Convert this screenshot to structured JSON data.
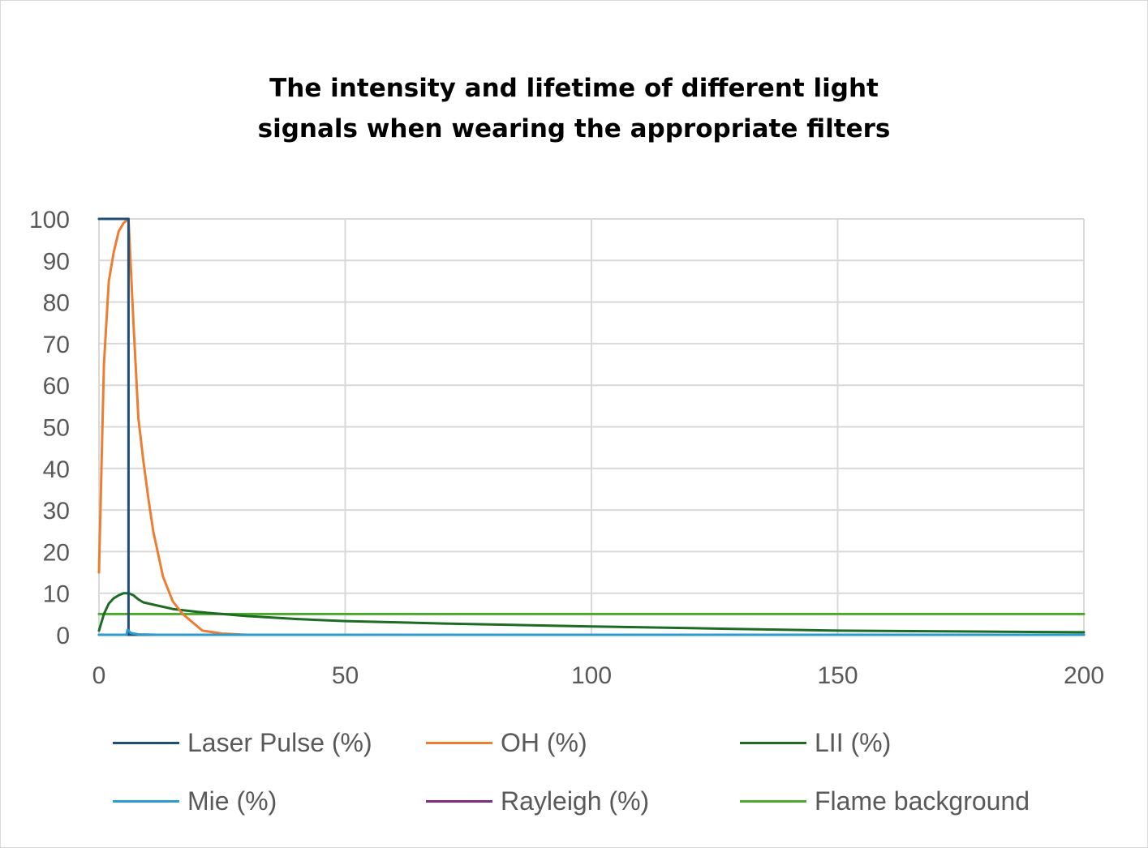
{
  "chart_data": {
    "type": "line",
    "title_lines": [
      "The intensity and lifetime of different light",
      "signals when wearing the appropriate filters"
    ],
    "xlim": [
      0,
      200
    ],
    "ylim": [
      0,
      100
    ],
    "x_ticks": [
      0,
      50,
      100,
      150,
      200
    ],
    "y_ticks": [
      0,
      10,
      20,
      30,
      40,
      50,
      60,
      70,
      80,
      90,
      100
    ],
    "grid": true,
    "legend_position": "bottom",
    "series": [
      {
        "name": "Laser Pulse (%)",
        "color": "#1f4e79",
        "points": [
          [
            0,
            100
          ],
          [
            6,
            100
          ],
          [
            6,
            0
          ],
          [
            200,
            0
          ]
        ]
      },
      {
        "name": "OH (%)",
        "color": "#ed7d31",
        "points": [
          [
            0,
            15
          ],
          [
            1,
            65
          ],
          [
            2,
            85
          ],
          [
            3,
            92
          ],
          [
            4,
            97
          ],
          [
            5,
            99
          ],
          [
            6,
            100
          ],
          [
            7,
            75
          ],
          [
            8,
            52
          ],
          [
            9,
            42
          ],
          [
            10,
            33
          ],
          [
            11,
            25
          ],
          [
            13,
            14
          ],
          [
            15,
            8
          ],
          [
            17,
            5
          ],
          [
            19,
            3
          ],
          [
            21,
            1
          ],
          [
            25,
            0.3
          ],
          [
            30,
            0
          ],
          [
            200,
            0
          ]
        ]
      },
      {
        "name": "LII (%)",
        "color": "#1e6b23",
        "points": [
          [
            0,
            1
          ],
          [
            1,
            5
          ],
          [
            2,
            7.5
          ],
          [
            3,
            8.8
          ],
          [
            4,
            9.5
          ],
          [
            5,
            10
          ],
          [
            6,
            10
          ],
          [
            7,
            9.5
          ],
          [
            8,
            8.5
          ],
          [
            9,
            7.8
          ],
          [
            12,
            7
          ],
          [
            15,
            6.2
          ],
          [
            20,
            5.5
          ],
          [
            25,
            5
          ],
          [
            30,
            4.5
          ],
          [
            40,
            3.8
          ],
          [
            50,
            3.3
          ],
          [
            70,
            2.7
          ],
          [
            100,
            2
          ],
          [
            120,
            1.6
          ],
          [
            150,
            1
          ],
          [
            175,
            0.8
          ],
          [
            200,
            0.6
          ]
        ]
      },
      {
        "name": "Mie (%)",
        "color": "#2e9bd0",
        "points": [
          [
            0,
            0
          ],
          [
            5.6,
            0
          ],
          [
            5.8,
            1.2
          ],
          [
            6.5,
            0.4
          ],
          [
            8,
            0.1
          ],
          [
            12,
            0
          ],
          [
            200,
            0
          ]
        ]
      },
      {
        "name": "Rayleigh (%)",
        "color": "#7f2b80",
        "points": [
          [
            0,
            0
          ],
          [
            200,
            0
          ]
        ]
      },
      {
        "name": "Flame background",
        "color": "#4ea72e",
        "points": [
          [
            0,
            5
          ],
          [
            200,
            5
          ]
        ]
      }
    ]
  }
}
